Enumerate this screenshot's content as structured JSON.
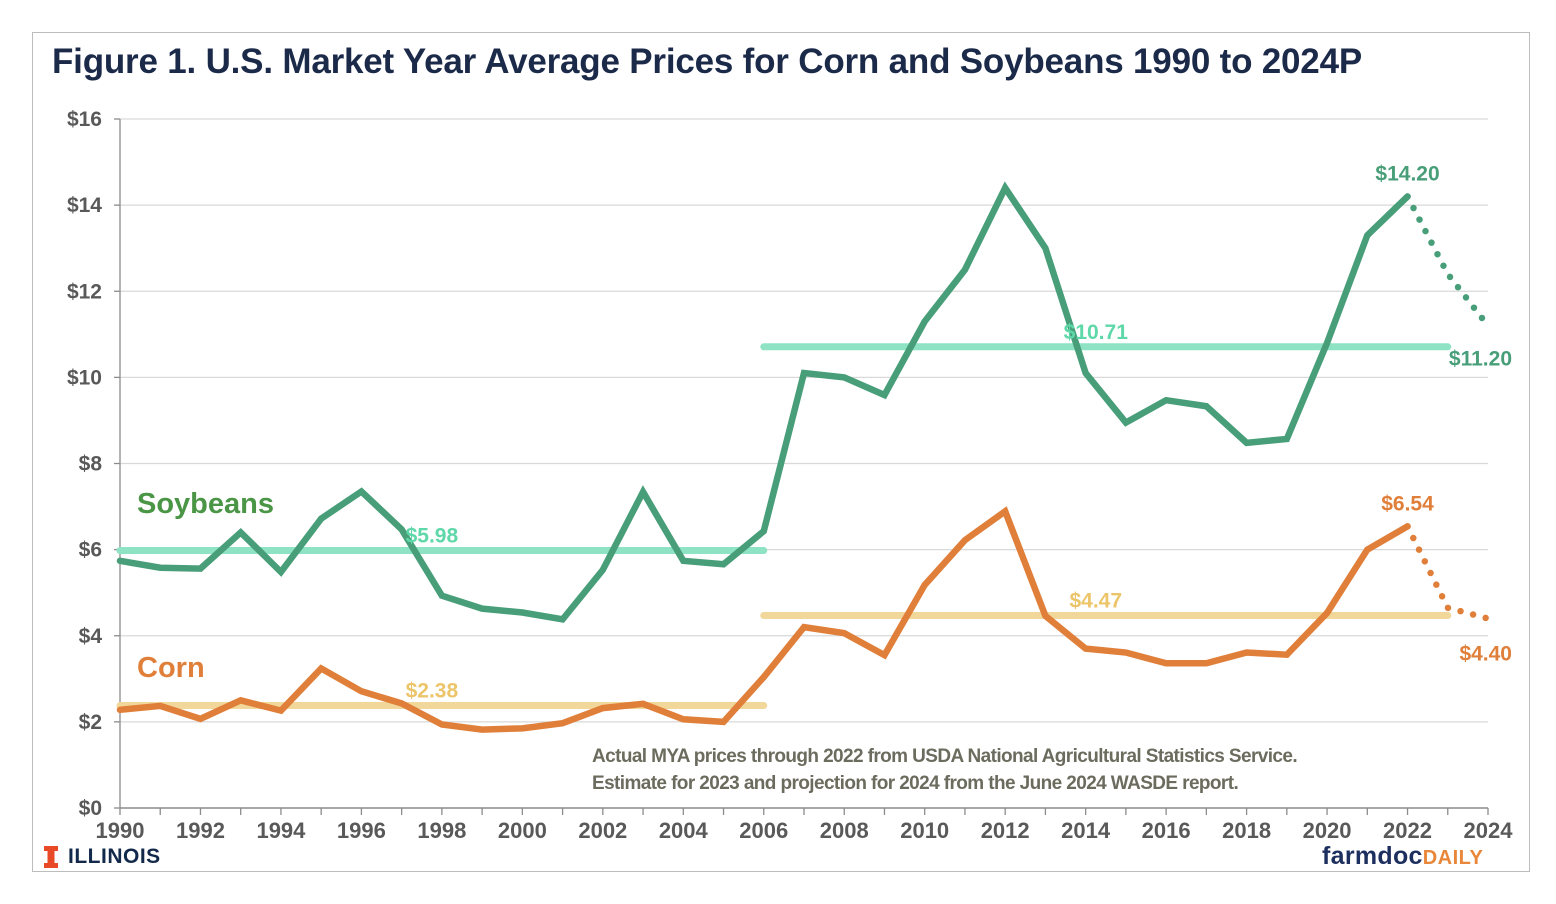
{
  "figure": {
    "title": "Figure 1. U.S. Market Year Average Prices for Corn and Soybeans 1990 to 2024P",
    "note_lines": [
      "Actual MYA prices through 2022 from USDA National Agricultural Statistics Service.",
      "Estimate for 2023 and projection for 2024 from the June 2024 WASDE report."
    ],
    "logos": {
      "left": "ILLINOIS",
      "right_main": "farmdoc",
      "right_sub": "DAILY"
    }
  },
  "chart_data": {
    "type": "line",
    "title": "Figure 1. U.S. Market Year Average Prices for Corn and Soybeans 1990 to 2024P",
    "xlabel": "",
    "ylabel": "",
    "xlim": [
      1990,
      2024
    ],
    "ylim": [
      0,
      16
    ],
    "grid": true,
    "x_ticks": [
      1990,
      1992,
      1994,
      1996,
      1998,
      2000,
      2002,
      2004,
      2006,
      2008,
      2010,
      2012,
      2014,
      2016,
      2018,
      2020,
      2022,
      2024
    ],
    "y_ticks": [
      0,
      2,
      4,
      6,
      8,
      10,
      12,
      14,
      16
    ],
    "y_tick_labels": [
      "$0",
      "$2",
      "$4",
      "$6",
      "$8",
      "$10",
      "$12",
      "$14",
      "$16"
    ],
    "x": [
      1990,
      1991,
      1992,
      1993,
      1994,
      1995,
      1996,
      1997,
      1998,
      1999,
      2000,
      2001,
      2002,
      2003,
      2004,
      2005,
      2006,
      2007,
      2008,
      2009,
      2010,
      2011,
      2012,
      2013,
      2014,
      2015,
      2016,
      2017,
      2018,
      2019,
      2020,
      2021,
      2022
    ],
    "series": [
      {
        "name": "Soybeans",
        "color": "#479e78",
        "label_color": "#4a9546",
        "values": [
          5.74,
          5.58,
          5.56,
          6.4,
          5.48,
          6.72,
          7.35,
          6.47,
          4.93,
          4.63,
          4.54,
          4.38,
          5.53,
          7.34,
          5.74,
          5.66,
          6.43,
          10.1,
          10.0,
          9.59,
          11.3,
          12.5,
          14.4,
          13.0,
          10.1,
          8.95,
          9.47,
          9.33,
          8.48,
          8.57,
          10.8,
          13.3,
          14.2
        ],
        "projection": {
          "x": [
            2022,
            2023,
            2024
          ],
          "values": [
            14.2,
            12.4,
            11.2
          ],
          "style": "dotted"
        },
        "label_points": [
          {
            "x": 2022,
            "value": 14.2,
            "text": "$14.20"
          },
          {
            "x": 2024,
            "value": 11.2,
            "text": "$11.20"
          }
        ]
      },
      {
        "name": "Corn",
        "color": "#e07f3a",
        "label_color": "#e07f3a",
        "values": [
          2.28,
          2.37,
          2.07,
          2.5,
          2.26,
          3.24,
          2.71,
          2.43,
          1.94,
          1.82,
          1.85,
          1.97,
          2.32,
          2.42,
          2.06,
          2.0,
          3.04,
          4.2,
          4.06,
          3.55,
          5.18,
          6.22,
          6.89,
          4.46,
          3.7,
          3.61,
          3.36,
          3.36,
          3.61,
          3.56,
          4.53,
          6.0,
          6.54
        ],
        "projection": {
          "x": [
            2022,
            2023,
            2024
          ],
          "values": [
            6.54,
            4.65,
            4.4
          ],
          "style": "dotted"
        },
        "label_points": [
          {
            "x": 2022,
            "value": 6.54,
            "text": "$6.54"
          },
          {
            "x": 2024,
            "value": 4.4,
            "text": "$4.40"
          }
        ]
      }
    ],
    "averages": [
      {
        "name": "Soybean avg 1990-2006",
        "series": "Soybeans",
        "x_range": [
          1990,
          2006
        ],
        "value": 5.98,
        "text": "$5.98",
        "color": "#8ee3c4"
      },
      {
        "name": "Soybean avg 2006-2023",
        "series": "Soybeans",
        "x_range": [
          2006,
          2023
        ],
        "value": 10.71,
        "text": "$10.71",
        "color": "#8ee3c4"
      },
      {
        "name": "Corn avg 1990-2006",
        "series": "Corn",
        "x_range": [
          1990,
          2006
        ],
        "value": 2.38,
        "text": "$2.38",
        "color": "#f2d79a"
      },
      {
        "name": "Corn avg 2006-2023",
        "series": "Corn",
        "x_range": [
          2006,
          2023
        ],
        "value": 4.47,
        "text": "$4.47",
        "color": "#f2d79a"
      }
    ],
    "average_label_colors": {
      "Soybeans": "#5ed8a8",
      "Corn": "#ecc56a"
    },
    "legend": "inline-labels-left"
  }
}
